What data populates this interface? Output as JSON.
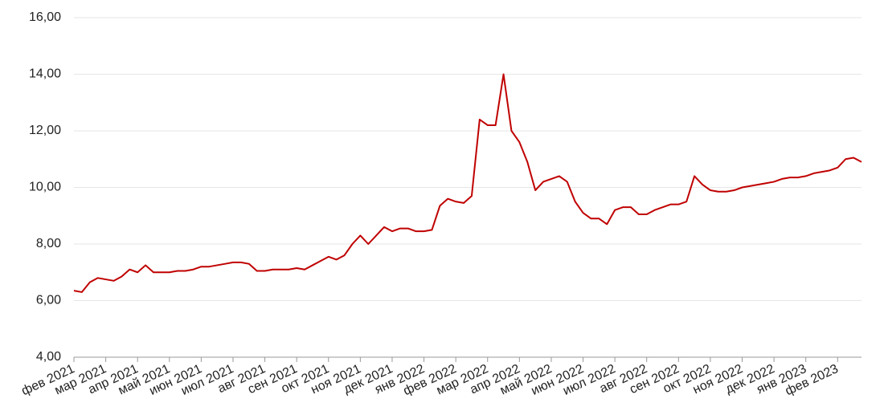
{
  "chart_data": {
    "type": "line",
    "categories": [
      "фев 2021",
      null,
      null,
      null,
      "мар 2021",
      null,
      null,
      null,
      "апр 2021",
      null,
      null,
      null,
      "май 2021",
      null,
      null,
      null,
      "июн 2021",
      null,
      null,
      null,
      "июл 2021",
      null,
      null,
      null,
      "авг 2021",
      null,
      null,
      null,
      "сен 2021",
      null,
      null,
      null,
      "окт 2021",
      null,
      null,
      null,
      "ноя 2021",
      null,
      null,
      null,
      "дек 2021",
      null,
      null,
      null,
      "янв 2022",
      null,
      null,
      null,
      "фев 2022",
      null,
      null,
      null,
      "мар 2022",
      null,
      null,
      null,
      "апр 2022",
      null,
      null,
      null,
      "май 2022",
      null,
      null,
      null,
      "июн 2022",
      null,
      null,
      null,
      "июл 2022",
      null,
      null,
      null,
      "авг 2022",
      null,
      null,
      null,
      "сен 2022",
      null,
      null,
      null,
      "окт 2022",
      null,
      null,
      null,
      "ноя 2022",
      null,
      null,
      null,
      "дек 2022",
      null,
      null,
      null,
      "янв 2023",
      null,
      null,
      null,
      "фев 2023",
      null,
      null,
      null
    ],
    "series": [
      {
        "color": "#c00000",
        "values": [
          6.35,
          6.3,
          6.65,
          6.8,
          6.75,
          6.7,
          6.85,
          7.1,
          7.0,
          7.25,
          7.0,
          7.0,
          7.0,
          7.05,
          7.05,
          7.1,
          7.2,
          7.2,
          7.25,
          7.3,
          7.35,
          7.35,
          7.3,
          7.05,
          7.05,
          7.1,
          7.1,
          7.1,
          7.15,
          7.1,
          7.25,
          7.4,
          7.55,
          7.45,
          7.6,
          8.0,
          8.3,
          8.0,
          8.3,
          8.6,
          8.45,
          8.55,
          8.55,
          8.45,
          8.45,
          8.5,
          9.35,
          9.6,
          9.5,
          9.45,
          9.7,
          12.4,
          12.2,
          12.2,
          14.0,
          12.0,
          11.6,
          10.9,
          9.9,
          10.2,
          10.3,
          10.4,
          10.2,
          9.5,
          9.1,
          8.9,
          8.9,
          8.7,
          9.2,
          9.3,
          9.3,
          9.05,
          9.05,
          9.2,
          9.3,
          9.4,
          9.4,
          9.5,
          10.4,
          10.1,
          9.9,
          9.85,
          9.85,
          9.9,
          10.0,
          10.05,
          10.1,
          10.15,
          10.2,
          10.3,
          10.35,
          10.35,
          10.4,
          10.5,
          10.55,
          10.6,
          10.7,
          11.0,
          11.05,
          10.9
        ]
      }
    ],
    "ylim": [
      4,
      16
    ],
    "yticks": [
      {
        "value": 4,
        "label": "4,00"
      },
      {
        "value": 6,
        "label": "6,00"
      },
      {
        "value": 8,
        "label": "8,00"
      },
      {
        "value": 10,
        "label": "10,00"
      },
      {
        "value": 12,
        "label": "12,00"
      },
      {
        "value": 14,
        "label": "14,00"
      },
      {
        "value": 16,
        "label": "16,00"
      }
    ],
    "grid": true
  }
}
